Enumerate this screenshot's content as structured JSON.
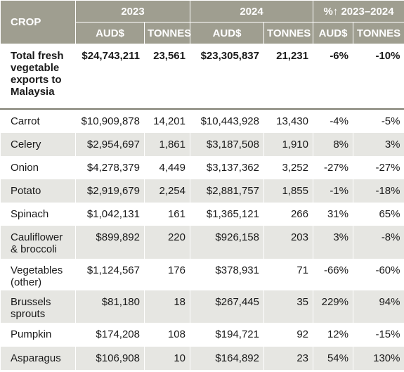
{
  "table": {
    "header": {
      "crop": "CROP",
      "groups": [
        "2023",
        "2024",
        "%↑ 2023–2024"
      ],
      "subheaders": [
        "AUD$",
        "TONNES",
        "AUD$",
        "TONNES",
        "AUD$",
        "TONNES"
      ]
    },
    "rows": [
      [
        "Total fresh vegetable exports to Malaysia",
        "$24,743,211",
        "23,561",
        "$23,305,837",
        "21,231",
        "-6%",
        "-10%"
      ],
      [
        "Carrot",
        "$10,909,878",
        "14,201",
        "$10,443,928",
        "13,430",
        "-4%",
        "-5%"
      ],
      [
        "Celery",
        "$2,954,697",
        "1,861",
        "$3,187,508",
        "1,910",
        "8%",
        "3%"
      ],
      [
        "Onion",
        "$4,278,379",
        "4,449",
        "$3,137,362",
        "3,252",
        "-27%",
        "-27%"
      ],
      [
        "Potato",
        "$2,919,679",
        "2,254",
        "$2,881,757",
        "1,855",
        "-1%",
        "-18%"
      ],
      [
        "Spinach",
        "$1,042,131",
        "161",
        "$1,365,121",
        "266",
        "31%",
        "65%"
      ],
      [
        "Cauliflower & broccoli",
        "$899,892",
        "220",
        "$926,158",
        "203",
        "3%",
        "-8%"
      ],
      [
        "Vegetables (other)",
        "$1,124,567",
        "176",
        "$378,931",
        "71",
        "-66%",
        "-60%"
      ],
      [
        "Brussels sprouts",
        "$81,180",
        "18",
        "$267,445",
        "35",
        "229%",
        "94%"
      ],
      [
        "Pumpkin",
        "$174,208",
        "108",
        "$194,721",
        "92",
        "12%",
        "-15%"
      ],
      [
        "Asparagus",
        "$106,908",
        "10",
        "$164,892",
        "23",
        "54%",
        "130%"
      ]
    ]
  }
}
